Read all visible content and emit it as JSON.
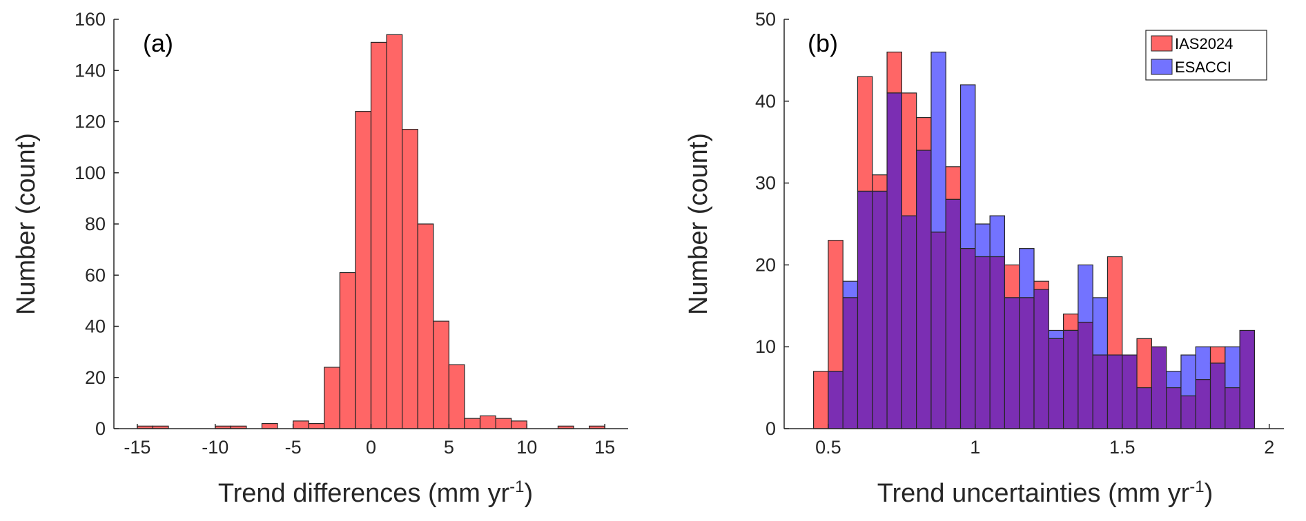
{
  "chart_data": [
    {
      "id": "a",
      "type": "bar",
      "panel_label": "(a)",
      "xlabel_main": "Trend differences (mm yr",
      "xlabel_sup": "-1",
      "xlabel_end": ")",
      "ylabel": "Number (count)",
      "xlim": [
        -16.5,
        16.5
      ],
      "ylim": [
        0,
        160
      ],
      "xticks": [
        -15,
        -10,
        -5,
        0,
        5,
        10,
        15
      ],
      "xtick_labels": [
        "-15",
        "-10",
        "-5",
        "0",
        "5",
        "10",
        "15"
      ],
      "yticks": [
        0,
        20,
        40,
        60,
        80,
        100,
        120,
        140,
        160
      ],
      "ytick_labels": [
        "0",
        "20",
        "40",
        "60",
        "80",
        "100",
        "120",
        "140",
        "160"
      ],
      "bin_edges": [
        -15,
        -14,
        -13,
        -12,
        -11,
        -10,
        -9,
        -8,
        -7,
        -6,
        -5,
        -4,
        -3,
        -2,
        -1,
        0,
        1,
        2,
        3,
        4,
        5,
        6,
        7,
        8,
        9,
        10,
        11,
        12,
        13,
        14,
        15
      ],
      "series": [
        {
          "name": "Trend differences",
          "color": "#ff6666",
          "values": [
            1,
            1,
            0,
            0,
            0,
            1,
            1,
            0,
            2,
            0,
            3,
            2,
            24,
            61,
            124,
            151,
            154,
            117,
            80,
            42,
            25,
            4,
            5,
            4,
            3,
            0,
            0,
            1,
            0,
            1
          ]
        }
      ],
      "legend": false
    },
    {
      "id": "b",
      "type": "bar",
      "panel_label": "(b)",
      "xlabel_main": "Trend uncertainties (mm yr",
      "xlabel_sup": "-1",
      "xlabel_end": ")",
      "ylabel": "Number (count)",
      "xlim": [
        0.35,
        2.05
      ],
      "ylim": [
        0,
        50
      ],
      "xticks": [
        0.5,
        1,
        1.5,
        2
      ],
      "xtick_labels": [
        "0.5",
        "1",
        "1.5",
        "2"
      ],
      "yticks": [
        0,
        10,
        20,
        30,
        40,
        50
      ],
      "ytick_labels": [
        "0",
        "10",
        "20",
        "30",
        "40",
        "50"
      ],
      "bin_start": 0.45,
      "bin_width": 0.05,
      "series": [
        {
          "name": "IAS2024",
          "color": "#ff6666",
          "values": [
            7,
            23,
            16,
            43,
            31,
            46,
            41,
            38,
            24,
            32,
            22,
            21,
            21,
            20,
            16,
            18,
            11,
            14,
            13,
            9,
            21,
            9,
            11,
            10,
            5,
            4,
            6,
            10,
            5,
            12
          ]
        },
        {
          "name": "ESACCI",
          "color": "#7373ff",
          "values": [
            0,
            7,
            18,
            29,
            29,
            41,
            26,
            34,
            46,
            28,
            42,
            25,
            26,
            16,
            22,
            17,
            12,
            12,
            20,
            16,
            9,
            9,
            5,
            10,
            7,
            9,
            10,
            8,
            10,
            12
          ]
        }
      ],
      "overlap_color": "#7b2eb3",
      "legend": true,
      "legend_position": "top-right"
    }
  ]
}
